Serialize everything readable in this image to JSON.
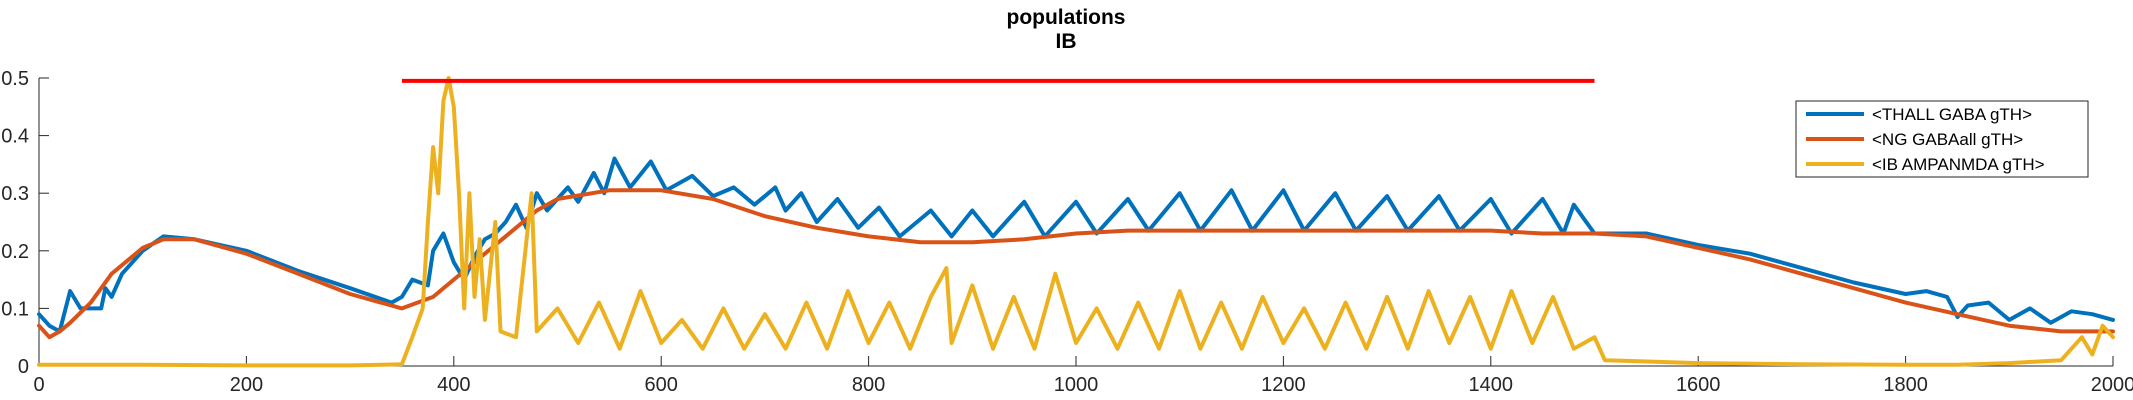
{
  "chart_data": {
    "type": "line",
    "title": "populations",
    "subtitle": "IB",
    "xlabel": "",
    "ylabel": "",
    "xlim": [
      0,
      2000
    ],
    "ylim": [
      0,
      0.5
    ],
    "xticks": [
      0,
      200,
      400,
      600,
      800,
      1000,
      1200,
      1400,
      1600,
      1800,
      2000
    ],
    "yticks": [
      0,
      0.1,
      0.2,
      0.3,
      0.4,
      0.5
    ],
    "grid": false,
    "legend_position": "top-right",
    "marker_line": {
      "x": [
        350,
        1500
      ],
      "y": 0.495,
      "color": "#ff0000"
    },
    "series": [
      {
        "name": "<THALL GABA gTH>",
        "color": "#0072bd",
        "points": [
          [
            0,
            0.09
          ],
          [
            10,
            0.07
          ],
          [
            20,
            0.06
          ],
          [
            30,
            0.13
          ],
          [
            40,
            0.1
          ],
          [
            60,
            0.1
          ],
          [
            64,
            0.135
          ],
          [
            70,
            0.12
          ],
          [
            80,
            0.16
          ],
          [
            100,
            0.2
          ],
          [
            120,
            0.225
          ],
          [
            150,
            0.22
          ],
          [
            200,
            0.2
          ],
          [
            250,
            0.165
          ],
          [
            300,
            0.135
          ],
          [
            340,
            0.11
          ],
          [
            350,
            0.12
          ],
          [
            360,
            0.15
          ],
          [
            375,
            0.14
          ],
          [
            380,
            0.2
          ],
          [
            390,
            0.23
          ],
          [
            400,
            0.18
          ],
          [
            410,
            0.15
          ],
          [
            420,
            0.19
          ],
          [
            430,
            0.22
          ],
          [
            440,
            0.23
          ],
          [
            450,
            0.25
          ],
          [
            460,
            0.28
          ],
          [
            470,
            0.24
          ],
          [
            480,
            0.3
          ],
          [
            490,
            0.27
          ],
          [
            510,
            0.31
          ],
          [
            520,
            0.285
          ],
          [
            535,
            0.335
          ],
          [
            545,
            0.3
          ],
          [
            555,
            0.36
          ],
          [
            570,
            0.31
          ],
          [
            590,
            0.355
          ],
          [
            605,
            0.305
          ],
          [
            630,
            0.33
          ],
          [
            650,
            0.295
          ],
          [
            670,
            0.31
          ],
          [
            690,
            0.28
          ],
          [
            710,
            0.31
          ],
          [
            720,
            0.27
          ],
          [
            735,
            0.3
          ],
          [
            750,
            0.25
          ],
          [
            770,
            0.29
          ],
          [
            790,
            0.24
          ],
          [
            810,
            0.275
          ],
          [
            830,
            0.225
          ],
          [
            860,
            0.27
          ],
          [
            880,
            0.225
          ],
          [
            900,
            0.27
          ],
          [
            920,
            0.225
          ],
          [
            950,
            0.285
          ],
          [
            970,
            0.225
          ],
          [
            1000,
            0.285
          ],
          [
            1020,
            0.23
          ],
          [
            1050,
            0.29
          ],
          [
            1070,
            0.235
          ],
          [
            1100,
            0.3
          ],
          [
            1120,
            0.235
          ],
          [
            1150,
            0.305
          ],
          [
            1170,
            0.235
          ],
          [
            1200,
            0.305
          ],
          [
            1220,
            0.235
          ],
          [
            1250,
            0.3
          ],
          [
            1270,
            0.235
          ],
          [
            1300,
            0.295
          ],
          [
            1320,
            0.235
          ],
          [
            1350,
            0.295
          ],
          [
            1370,
            0.235
          ],
          [
            1400,
            0.29
          ],
          [
            1420,
            0.23
          ],
          [
            1450,
            0.29
          ],
          [
            1470,
            0.23
          ],
          [
            1480,
            0.28
          ],
          [
            1500,
            0.23
          ],
          [
            1550,
            0.23
          ],
          [
            1600,
            0.21
          ],
          [
            1650,
            0.195
          ],
          [
            1700,
            0.17
          ],
          [
            1750,
            0.145
          ],
          [
            1800,
            0.125
          ],
          [
            1820,
            0.13
          ],
          [
            1840,
            0.12
          ],
          [
            1850,
            0.085
          ],
          [
            1860,
            0.105
          ],
          [
            1880,
            0.11
          ],
          [
            1900,
            0.08
          ],
          [
            1920,
            0.1
          ],
          [
            1940,
            0.075
          ],
          [
            1960,
            0.095
          ],
          [
            1980,
            0.09
          ],
          [
            2000,
            0.08
          ]
        ]
      },
      {
        "name": "<NG GABAall gTH>",
        "color": "#d95319",
        "points": [
          [
            0,
            0.07
          ],
          [
            10,
            0.05
          ],
          [
            20,
            0.06
          ],
          [
            30,
            0.075
          ],
          [
            50,
            0.11
          ],
          [
            70,
            0.16
          ],
          [
            100,
            0.205
          ],
          [
            120,
            0.22
          ],
          [
            150,
            0.22
          ],
          [
            200,
            0.195
          ],
          [
            250,
            0.16
          ],
          [
            300,
            0.125
          ],
          [
            350,
            0.1
          ],
          [
            380,
            0.12
          ],
          [
            400,
            0.15
          ],
          [
            420,
            0.18
          ],
          [
            440,
            0.21
          ],
          [
            460,
            0.24
          ],
          [
            480,
            0.27
          ],
          [
            500,
            0.29
          ],
          [
            550,
            0.305
          ],
          [
            600,
            0.305
          ],
          [
            650,
            0.29
          ],
          [
            700,
            0.26
          ],
          [
            750,
            0.24
          ],
          [
            800,
            0.225
          ],
          [
            850,
            0.215
          ],
          [
            900,
            0.215
          ],
          [
            950,
            0.22
          ],
          [
            1000,
            0.23
          ],
          [
            1050,
            0.235
          ],
          [
            1100,
            0.235
          ],
          [
            1150,
            0.235
          ],
          [
            1200,
            0.235
          ],
          [
            1250,
            0.235
          ],
          [
            1300,
            0.235
          ],
          [
            1350,
            0.235
          ],
          [
            1400,
            0.235
          ],
          [
            1450,
            0.23
          ],
          [
            1500,
            0.23
          ],
          [
            1550,
            0.225
          ],
          [
            1600,
            0.205
          ],
          [
            1650,
            0.185
          ],
          [
            1700,
            0.16
          ],
          [
            1750,
            0.135
          ],
          [
            1800,
            0.11
          ],
          [
            1850,
            0.09
          ],
          [
            1900,
            0.07
          ],
          [
            1950,
            0.06
          ],
          [
            2000,
            0.06
          ]
        ]
      },
      {
        "name": "<IB AMPANMDA gTH>",
        "color": "#edb120",
        "points": [
          [
            0,
            0.002
          ],
          [
            100,
            0.002
          ],
          [
            200,
            0.001
          ],
          [
            300,
            0.001
          ],
          [
            350,
            0.003
          ],
          [
            360,
            0.05
          ],
          [
            370,
            0.1
          ],
          [
            375,
            0.25
          ],
          [
            380,
            0.38
          ],
          [
            385,
            0.3
          ],
          [
            390,
            0.46
          ],
          [
            395,
            0.5
          ],
          [
            400,
            0.45
          ],
          [
            405,
            0.3
          ],
          [
            410,
            0.1
          ],
          [
            415,
            0.3
          ],
          [
            420,
            0.12
          ],
          [
            425,
            0.22
          ],
          [
            430,
            0.08
          ],
          [
            440,
            0.25
          ],
          [
            445,
            0.06
          ],
          [
            460,
            0.05
          ],
          [
            475,
            0.3
          ],
          [
            480,
            0.06
          ],
          [
            500,
            0.1
          ],
          [
            520,
            0.04
          ],
          [
            540,
            0.11
          ],
          [
            560,
            0.03
          ],
          [
            580,
            0.13
          ],
          [
            600,
            0.04
          ],
          [
            620,
            0.08
          ],
          [
            640,
            0.03
          ],
          [
            660,
            0.1
          ],
          [
            680,
            0.03
          ],
          [
            700,
            0.09
          ],
          [
            720,
            0.03
          ],
          [
            740,
            0.11
          ],
          [
            760,
            0.03
          ],
          [
            780,
            0.13
          ],
          [
            800,
            0.04
          ],
          [
            820,
            0.11
          ],
          [
            840,
            0.03
          ],
          [
            860,
            0.12
          ],
          [
            875,
            0.17
          ],
          [
            880,
            0.04
          ],
          [
            900,
            0.14
          ],
          [
            920,
            0.03
          ],
          [
            940,
            0.12
          ],
          [
            960,
            0.03
          ],
          [
            980,
            0.16
          ],
          [
            1000,
            0.04
          ],
          [
            1020,
            0.1
          ],
          [
            1040,
            0.03
          ],
          [
            1060,
            0.11
          ],
          [
            1080,
            0.03
          ],
          [
            1100,
            0.13
          ],
          [
            1120,
            0.03
          ],
          [
            1140,
            0.11
          ],
          [
            1160,
            0.03
          ],
          [
            1180,
            0.12
          ],
          [
            1200,
            0.04
          ],
          [
            1220,
            0.1
          ],
          [
            1240,
            0.03
          ],
          [
            1260,
            0.11
          ],
          [
            1280,
            0.03
          ],
          [
            1300,
            0.12
          ],
          [
            1320,
            0.03
          ],
          [
            1340,
            0.13
          ],
          [
            1360,
            0.04
          ],
          [
            1380,
            0.12
          ],
          [
            1400,
            0.03
          ],
          [
            1420,
            0.13
          ],
          [
            1440,
            0.04
          ],
          [
            1460,
            0.12
          ],
          [
            1480,
            0.03
          ],
          [
            1500,
            0.05
          ],
          [
            1510,
            0.01
          ],
          [
            1600,
            0.005
          ],
          [
            1700,
            0.003
          ],
          [
            1800,
            0.002
          ],
          [
            1850,
            0.002
          ],
          [
            1900,
            0.005
          ],
          [
            1950,
            0.01
          ],
          [
            1970,
            0.05
          ],
          [
            1980,
            0.02
          ],
          [
            1990,
            0.07
          ],
          [
            2000,
            0.05
          ]
        ]
      }
    ]
  }
}
